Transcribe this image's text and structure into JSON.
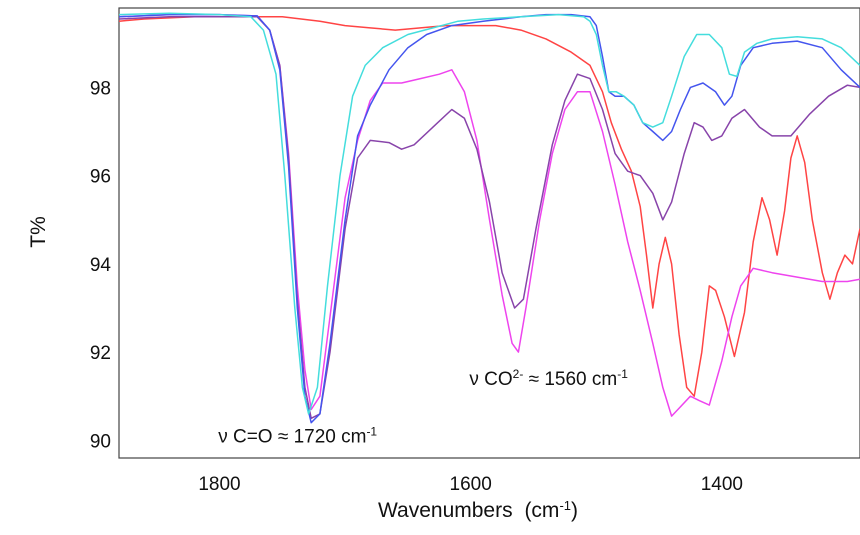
{
  "chart_data": {
    "type": "line",
    "title": "",
    "xlabel": "Wavenumbers",
    "xlabel_unit": "(cm",
    "xlabel_unit_sup": "-1",
    "xlabel_unit_close": ")",
    "ylabel": "T%",
    "x_reversed": true,
    "xlim": [
      1880,
      1290
    ],
    "ylim": [
      89.6,
      99.8
    ],
    "xticks": [
      1800,
      1600,
      1400
    ],
    "yticks": [
      90,
      92,
      94,
      96,
      98
    ],
    "grid": false,
    "legend": "none",
    "annotations": [
      {
        "text": "ν C=O ≈ 1720 cm",
        "sup": "-1",
        "x": 1801,
        "y": 89.95
      },
      {
        "text": "ν CO",
        "sup": "2-",
        "text2": " ≈ 1560 cm",
        "sup2": "-1",
        "x": 1601,
        "y": 91.25
      }
    ],
    "series": [
      {
        "color": "#ff4444",
        "points": [
          [
            1880,
            99.5
          ],
          [
            1860,
            99.55
          ],
          [
            1820,
            99.6
          ],
          [
            1790,
            99.6
          ],
          [
            1770,
            99.6
          ],
          [
            1750,
            99.6
          ],
          [
            1720,
            99.5
          ],
          [
            1700,
            99.4
          ],
          [
            1680,
            99.35
          ],
          [
            1660,
            99.3
          ],
          [
            1640,
            99.35
          ],
          [
            1620,
            99.4
          ],
          [
            1600,
            99.4
          ],
          [
            1580,
            99.4
          ],
          [
            1560,
            99.3
          ],
          [
            1540,
            99.1
          ],
          [
            1520,
            98.8
          ],
          [
            1505,
            98.5
          ],
          [
            1495,
            97.9
          ],
          [
            1488,
            97.2
          ],
          [
            1480,
            96.6
          ],
          [
            1472,
            96.1
          ],
          [
            1465,
            95.3
          ],
          [
            1460,
            94.2
          ],
          [
            1455,
            93.0
          ],
          [
            1450,
            94.0
          ],
          [
            1445,
            94.6
          ],
          [
            1440,
            94.0
          ],
          [
            1434,
            92.4
          ],
          [
            1428,
            91.2
          ],
          [
            1422,
            91.0
          ],
          [
            1416,
            92.0
          ],
          [
            1410,
            93.5
          ],
          [
            1405,
            93.4
          ],
          [
            1398,
            92.8
          ],
          [
            1390,
            91.9
          ],
          [
            1382,
            92.9
          ],
          [
            1375,
            94.5
          ],
          [
            1368,
            95.5
          ],
          [
            1362,
            95.0
          ],
          [
            1356,
            94.2
          ],
          [
            1350,
            95.2
          ],
          [
            1345,
            96.4
          ],
          [
            1340,
            96.9
          ],
          [
            1334,
            96.3
          ],
          [
            1328,
            95.0
          ],
          [
            1320,
            93.8
          ],
          [
            1314,
            93.2
          ],
          [
            1308,
            93.8
          ],
          [
            1302,
            94.2
          ],
          [
            1296,
            94.0
          ],
          [
            1290,
            94.8
          ]
        ]
      },
      {
        "color": "#ee44ee",
        "points": [
          [
            1880,
            99.6
          ],
          [
            1840,
            99.65
          ],
          [
            1800,
            99.65
          ],
          [
            1770,
            99.62
          ],
          [
            1760,
            99.3
          ],
          [
            1752,
            98.5
          ],
          [
            1745,
            96.5
          ],
          [
            1738,
            93.5
          ],
          [
            1732,
            91.6
          ],
          [
            1727,
            90.7
          ],
          [
            1720,
            91.0
          ],
          [
            1712,
            92.8
          ],
          [
            1700,
            95.5
          ],
          [
            1690,
            96.8
          ],
          [
            1680,
            97.7
          ],
          [
            1670,
            98.1
          ],
          [
            1655,
            98.1
          ],
          [
            1640,
            98.2
          ],
          [
            1625,
            98.3
          ],
          [
            1615,
            98.4
          ],
          [
            1605,
            97.9
          ],
          [
            1595,
            96.8
          ],
          [
            1585,
            95.0
          ],
          [
            1575,
            93.3
          ],
          [
            1567,
            92.2
          ],
          [
            1562,
            92.0
          ],
          [
            1556,
            93.0
          ],
          [
            1545,
            95.0
          ],
          [
            1535,
            96.5
          ],
          [
            1525,
            97.5
          ],
          [
            1515,
            97.9
          ],
          [
            1505,
            97.9
          ],
          [
            1495,
            97.0
          ],
          [
            1485,
            95.8
          ],
          [
            1475,
            94.5
          ],
          [
            1465,
            93.4
          ],
          [
            1455,
            92.2
          ],
          [
            1447,
            91.2
          ],
          [
            1440,
            90.55
          ],
          [
            1435,
            90.7
          ],
          [
            1425,
            91.0
          ],
          [
            1418,
            90.9
          ],
          [
            1410,
            90.8
          ],
          [
            1400,
            91.8
          ],
          [
            1392,
            92.8
          ],
          [
            1385,
            93.5
          ],
          [
            1375,
            93.9
          ],
          [
            1360,
            93.8
          ],
          [
            1340,
            93.7
          ],
          [
            1320,
            93.6
          ],
          [
            1300,
            93.6
          ],
          [
            1290,
            93.65
          ]
        ]
      },
      {
        "color": "#8844aa",
        "points": [
          [
            1880,
            99.55
          ],
          [
            1840,
            99.6
          ],
          [
            1800,
            99.6
          ],
          [
            1770,
            99.6
          ],
          [
            1760,
            99.3
          ],
          [
            1752,
            98.5
          ],
          [
            1745,
            96.4
          ],
          [
            1738,
            93.2
          ],
          [
            1732,
            91.2
          ],
          [
            1727,
            90.5
          ],
          [
            1720,
            90.6
          ],
          [
            1712,
            92.0
          ],
          [
            1700,
            94.8
          ],
          [
            1690,
            96.4
          ],
          [
            1680,
            96.8
          ],
          [
            1665,
            96.75
          ],
          [
            1655,
            96.6
          ],
          [
            1645,
            96.7
          ],
          [
            1630,
            97.1
          ],
          [
            1615,
            97.5
          ],
          [
            1605,
            97.3
          ],
          [
            1595,
            96.6
          ],
          [
            1585,
            95.4
          ],
          [
            1575,
            93.8
          ],
          [
            1565,
            93.0
          ],
          [
            1558,
            93.2
          ],
          [
            1548,
            94.8
          ],
          [
            1535,
            96.7
          ],
          [
            1525,
            97.7
          ],
          [
            1515,
            98.3
          ],
          [
            1505,
            98.2
          ],
          [
            1495,
            97.5
          ],
          [
            1485,
            96.5
          ],
          [
            1475,
            96.1
          ],
          [
            1465,
            96.0
          ],
          [
            1455,
            95.6
          ],
          [
            1447,
            95.0
          ],
          [
            1440,
            95.4
          ],
          [
            1430,
            96.5
          ],
          [
            1422,
            97.2
          ],
          [
            1415,
            97.1
          ],
          [
            1408,
            96.8
          ],
          [
            1400,
            96.9
          ],
          [
            1392,
            97.3
          ],
          [
            1382,
            97.5
          ],
          [
            1370,
            97.1
          ],
          [
            1360,
            96.9
          ],
          [
            1345,
            96.9
          ],
          [
            1330,
            97.4
          ],
          [
            1315,
            97.8
          ],
          [
            1300,
            98.05
          ],
          [
            1290,
            98.0
          ]
        ]
      },
      {
        "color": "#4455ee",
        "points": [
          [
            1880,
            99.6
          ],
          [
            1840,
            99.65
          ],
          [
            1800,
            99.65
          ],
          [
            1770,
            99.62
          ],
          [
            1760,
            99.3
          ],
          [
            1752,
            98.4
          ],
          [
            1745,
            96.2
          ],
          [
            1738,
            93.0
          ],
          [
            1732,
            91.0
          ],
          [
            1727,
            90.4
          ],
          [
            1720,
            90.6
          ],
          [
            1712,
            92.2
          ],
          [
            1700,
            95.0
          ],
          [
            1690,
            96.9
          ],
          [
            1680,
            97.6
          ],
          [
            1665,
            98.4
          ],
          [
            1650,
            98.9
          ],
          [
            1635,
            99.2
          ],
          [
            1615,
            99.4
          ],
          [
            1590,
            99.5
          ],
          [
            1560,
            99.6
          ],
          [
            1540,
            99.65
          ],
          [
            1520,
            99.65
          ],
          [
            1505,
            99.6
          ],
          [
            1500,
            99.4
          ],
          [
            1495,
            98.7
          ],
          [
            1490,
            97.9
          ],
          [
            1485,
            97.8
          ],
          [
            1478,
            97.8
          ],
          [
            1470,
            97.6
          ],
          [
            1463,
            97.2
          ],
          [
            1455,
            97.0
          ],
          [
            1447,
            96.8
          ],
          [
            1440,
            97.0
          ],
          [
            1433,
            97.5
          ],
          [
            1425,
            98.0
          ],
          [
            1415,
            98.1
          ],
          [
            1405,
            97.9
          ],
          [
            1398,
            97.6
          ],
          [
            1392,
            97.8
          ],
          [
            1385,
            98.5
          ],
          [
            1375,
            98.9
          ],
          [
            1360,
            99.0
          ],
          [
            1340,
            99.05
          ],
          [
            1320,
            98.9
          ],
          [
            1305,
            98.4
          ],
          [
            1290,
            98.0
          ]
        ]
      },
      {
        "color": "#44dddd",
        "points": [
          [
            1880,
            99.65
          ],
          [
            1840,
            99.68
          ],
          [
            1800,
            99.65
          ],
          [
            1775,
            99.6
          ],
          [
            1765,
            99.3
          ],
          [
            1755,
            98.3
          ],
          [
            1748,
            96.0
          ],
          [
            1740,
            93.0
          ],
          [
            1734,
            91.2
          ],
          [
            1729,
            90.6
          ],
          [
            1722,
            91.2
          ],
          [
            1714,
            93.5
          ],
          [
            1704,
            96.0
          ],
          [
            1694,
            97.8
          ],
          [
            1684,
            98.5
          ],
          [
            1670,
            98.9
          ],
          [
            1650,
            99.2
          ],
          [
            1630,
            99.35
          ],
          [
            1610,
            99.5
          ],
          [
            1590,
            99.55
          ],
          [
            1560,
            99.6
          ],
          [
            1530,
            99.65
          ],
          [
            1510,
            99.6
          ],
          [
            1505,
            99.5
          ],
          [
            1500,
            99.2
          ],
          [
            1495,
            98.5
          ],
          [
            1490,
            97.9
          ],
          [
            1484,
            97.9
          ],
          [
            1478,
            97.8
          ],
          [
            1470,
            97.6
          ],
          [
            1463,
            97.2
          ],
          [
            1455,
            97.1
          ],
          [
            1447,
            97.2
          ],
          [
            1440,
            97.8
          ],
          [
            1430,
            98.7
          ],
          [
            1420,
            99.2
          ],
          [
            1410,
            99.2
          ],
          [
            1400,
            98.9
          ],
          [
            1394,
            98.3
          ],
          [
            1388,
            98.25
          ],
          [
            1382,
            98.8
          ],
          [
            1372,
            99.0
          ],
          [
            1360,
            99.1
          ],
          [
            1340,
            99.15
          ],
          [
            1320,
            99.1
          ],
          [
            1305,
            98.9
          ],
          [
            1290,
            98.5
          ]
        ]
      }
    ]
  }
}
